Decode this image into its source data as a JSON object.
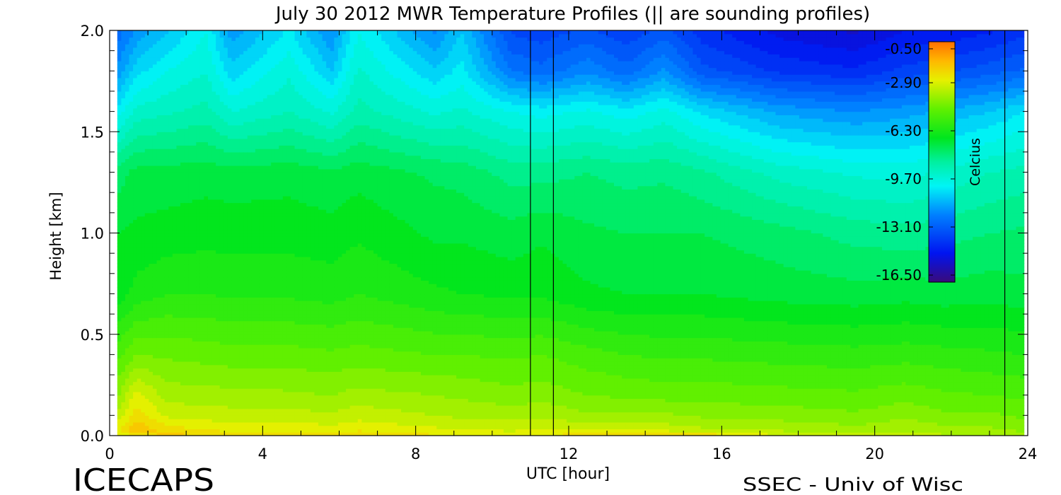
{
  "chart_data": {
    "type": "heatmap",
    "title": "July 30 2012 MWR Temperature Profiles (|| are sounding profiles)",
    "xlabel": "UTC [hour]",
    "ylabel": "Height [km]",
    "xlim": [
      0,
      24
    ],
    "ylim": [
      0,
      2.0
    ],
    "x_ticks": [
      0,
      4,
      8,
      12,
      16,
      20,
      24
    ],
    "y_ticks": [
      0.0,
      0.5,
      1.0,
      1.5,
      2.0
    ],
    "x_tick_labels": [
      "0",
      "4",
      "8",
      "12",
      "16",
      "20",
      "24"
    ],
    "y_tick_labels": [
      "0.0",
      "0.5",
      "1.0",
      "1.5",
      "2.0"
    ],
    "data_start_hour": 0.2,
    "data_end_hour": 23.9,
    "sounding_times": [
      11.0,
      11.6,
      23.4
    ],
    "heights_km": [
      0.0,
      0.03,
      0.1,
      0.2,
      0.4,
      0.7,
      1.0,
      1.3,
      1.6,
      1.8,
      2.0
    ],
    "profile_hours": [
      0.2,
      0.7,
      1.5,
      2.5,
      3.2,
      4.7,
      5.8,
      6.5,
      8.5,
      9.2,
      10.5,
      11.3,
      12.5,
      13.5,
      14.5,
      15.5,
      17.5,
      19.5,
      20.8,
      21.8,
      23.0,
      23.9
    ],
    "temperature_C": [
      [
        -3.0,
        -2.6,
        -3.3,
        -4.1,
        -5.2,
        -6.8,
        -7.0,
        -7.8,
        -10.3,
        -11.9,
        -12.8
      ],
      [
        -2.4,
        -1.6,
        -2.2,
        -2.8,
        -4.5,
        -6.3,
        -6.9,
        -7.3,
        -9.3,
        -10.7,
        -11.9
      ],
      [
        -1.8,
        -2.2,
        -3.1,
        -3.7,
        -4.6,
        -6.0,
        -6.8,
        -7.3,
        -9.1,
        -10.0,
        -11.1
      ],
      [
        -1.9,
        -2.6,
        -3.2,
        -3.8,
        -4.7,
        -6.0,
        -6.7,
        -7.2,
        -8.8,
        -9.5,
        -10.0
      ],
      [
        -2.1,
        -2.6,
        -3.3,
        -3.8,
        -4.8,
        -6.1,
        -6.7,
        -7.3,
        -9.5,
        -10.8,
        -11.8
      ],
      [
        -2.0,
        -2.6,
        -3.3,
        -3.9,
        -4.8,
        -6.1,
        -6.7,
        -7.2,
        -9.0,
        -9.6,
        -10.4
      ],
      [
        -2.3,
        -2.8,
        -3.4,
        -4.0,
        -4.9,
        -6.2,
        -6.8,
        -7.4,
        -9.6,
        -11.0,
        -12.0
      ],
      [
        -1.9,
        -2.6,
        -3.2,
        -3.8,
        -4.8,
        -6.0,
        -6.6,
        -7.2,
        -8.8,
        -9.4,
        -10.0
      ],
      [
        -2.4,
        -2.9,
        -3.5,
        -4.0,
        -5.0,
        -6.4,
        -7.1,
        -7.6,
        -9.6,
        -10.9,
        -12.1
      ],
      [
        -2.5,
        -3.0,
        -3.6,
        -4.1,
        -5.0,
        -6.5,
        -7.1,
        -7.7,
        -9.4,
        -10.3,
        -11.0
      ],
      [
        -2.6,
        -3.1,
        -3.7,
        -4.3,
        -5.1,
        -6.6,
        -7.3,
        -8.2,
        -10.0,
        -12.5,
        -13.6
      ],
      [
        -2.5,
        -3.0,
        -3.6,
        -4.2,
        -5.0,
        -6.6,
        -7.1,
        -8.2,
        -10.2,
        -12.8,
        -13.8
      ],
      [
        -2.0,
        -3.1,
        -3.9,
        -4.5,
        -5.3,
        -6.9,
        -7.4,
        -8.0,
        -9.9,
        -12.1,
        -13.4
      ],
      [
        -1.7,
        -3.0,
        -3.8,
        -4.6,
        -5.5,
        -7.0,
        -7.5,
        -8.2,
        -10.3,
        -12.8,
        -13.9
      ],
      [
        -1.9,
        -3.2,
        -3.9,
        -4.7,
        -5.6,
        -7.0,
        -7.5,
        -8.1,
        -9.8,
        -11.9,
        -13.3
      ],
      [
        -2.0,
        -3.4,
        -4.1,
        -4.7,
        -5.6,
        -7.0,
        -7.5,
        -8.4,
        -10.6,
        -13.3,
        -14.3
      ],
      [
        -2.9,
        -3.6,
        -4.2,
        -4.8,
        -5.7,
        -7.2,
        -7.8,
        -9.2,
        -11.6,
        -14.1,
        -15.2
      ],
      [
        -3.3,
        -3.8,
        -4.4,
        -4.9,
        -5.8,
        -7.3,
        -8.2,
        -9.6,
        -12.0,
        -14.4,
        -15.6
      ],
      [
        -3.1,
        -3.6,
        -4.1,
        -4.7,
        -5.7,
        -7.2,
        -8.3,
        -9.7,
        -11.7,
        -13.8,
        -15.0
      ],
      [
        -3.4,
        -3.8,
        -4.4,
        -4.9,
        -5.8,
        -7.3,
        -8.2,
        -9.4,
        -11.4,
        -13.6,
        -14.9
      ],
      [
        -3.5,
        -3.9,
        -4.4,
        -5.0,
        -5.9,
        -7.2,
        -8.0,
        -9.0,
        -11.0,
        -13.2,
        -14.6
      ],
      [
        -3.8,
        -4.1,
        -4.6,
        -5.1,
        -6.0,
        -7.3,
        -7.9,
        -8.8,
        -10.5,
        -12.9,
        -14.2
      ]
    ],
    "colorbar": {
      "label": "Celcius",
      "min": -17.0,
      "max": 0.0,
      "tick_values": [
        -0.5,
        -2.9,
        -6.3,
        -9.7,
        -13.1,
        -16.5
      ],
      "tick_labels": [
        "-0.50",
        "-2.90",
        "-6.30",
        "-9.70",
        "-13.10",
        "-16.50"
      ]
    },
    "colormap_stops": [
      {
        "pos": 0.0,
        "color": "#3a0b7a"
      },
      {
        "pos": 0.12,
        "color": "#0014f0"
      },
      {
        "pos": 0.28,
        "color": "#0080ff"
      },
      {
        "pos": 0.4,
        "color": "#00f5f5"
      },
      {
        "pos": 0.5,
        "color": "#00f0a0"
      },
      {
        "pos": 0.6,
        "color": "#00e61e"
      },
      {
        "pos": 0.72,
        "color": "#60f000"
      },
      {
        "pos": 0.84,
        "color": "#e6f000"
      },
      {
        "pos": 0.92,
        "color": "#ffb800"
      },
      {
        "pos": 1.0,
        "color": "#ff7000"
      }
    ]
  },
  "footer": {
    "left_label": "ICECAPS",
    "right_label": "SSEC - Univ of Wisc"
  }
}
